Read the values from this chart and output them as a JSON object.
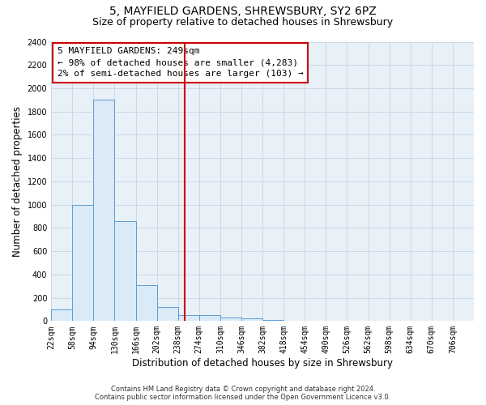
{
  "title1": "5, MAYFIELD GARDENS, SHREWSBURY, SY2 6PZ",
  "title2": "Size of property relative to detached houses in Shrewsbury",
  "xlabel": "Distribution of detached houses by size in Shrewsbury",
  "ylabel": "Number of detached properties",
  "bin_edges": [
    22,
    58,
    94,
    130,
    166,
    202,
    238,
    274,
    310,
    346,
    382,
    418,
    454,
    490,
    526,
    562,
    598,
    634,
    670,
    706,
    742
  ],
  "bar_heights": [
    100,
    1000,
    1900,
    860,
    310,
    120,
    50,
    50,
    30,
    20,
    10,
    5,
    3,
    2,
    1,
    1,
    1,
    0,
    0,
    0
  ],
  "bar_color": "#daeaf7",
  "bar_edgecolor": "#5b9bd5",
  "vline_x": 249,
  "vline_color": "#cc0000",
  "annotation_text": "5 MAYFIELD GARDENS: 249sqm\n← 98% of detached houses are smaller (4,283)\n2% of semi-detached houses are larger (103) →",
  "annotation_box_color": "#ffffff",
  "annotation_box_edgecolor": "#cc0000",
  "ylim": [
    0,
    2400
  ],
  "yticks": [
    0,
    200,
    400,
    600,
    800,
    1000,
    1200,
    1400,
    1600,
    1800,
    2000,
    2200,
    2400
  ],
  "footer1": "Contains HM Land Registry data © Crown copyright and database right 2024.",
  "footer2": "Contains public sector information licensed under the Open Government Licence v3.0.",
  "plot_bg_color": "#e8f0f8",
  "grid_color": "#c8d4e0",
  "title1_fontsize": 10,
  "title2_fontsize": 9,
  "tick_fontsize": 7,
  "label_fontsize": 8.5,
  "annotation_fontsize": 8,
  "footer_fontsize": 6
}
